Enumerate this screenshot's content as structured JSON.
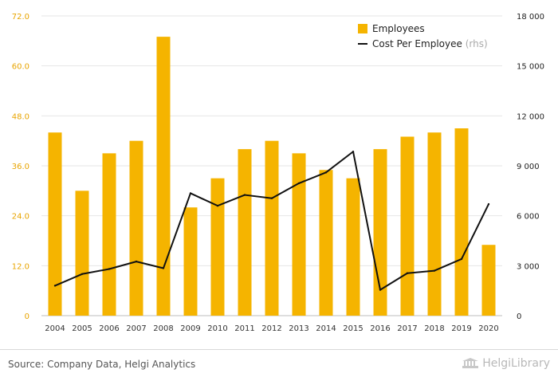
{
  "chart_data": {
    "type": "bar",
    "categories": [
      "2004",
      "2005",
      "2006",
      "2007",
      "2008",
      "2009",
      "2010",
      "2011",
      "2012",
      "2013",
      "2014",
      "2015",
      "2016",
      "2017",
      "2018",
      "2019",
      "2020"
    ],
    "series": [
      {
        "name": "Employees",
        "kind": "bar",
        "axis": "left",
        "color": "#f5b400",
        "values": [
          44,
          30,
          39,
          42,
          67,
          26,
          33,
          40,
          42,
          39,
          35,
          33,
          40,
          43,
          44,
          45,
          17
        ]
      },
      {
        "name": "Cost Per Employee",
        "name_suffix": "(rhs)",
        "kind": "line",
        "axis": "right",
        "color": "#111111",
        "values": [
          1800,
          2500,
          2800,
          3250,
          2850,
          7350,
          6600,
          7250,
          7050,
          7950,
          8600,
          9850,
          1550,
          2550,
          2700,
          3400,
          6700
        ]
      }
    ],
    "left_axis": {
      "ylim": [
        0,
        72
      ],
      "ticks": [
        "0",
        "12.0",
        "24.0",
        "36.0",
        "48.0",
        "60.0",
        "72.0"
      ],
      "tick_color": "#e8a400"
    },
    "right_axis": {
      "ylim": [
        0,
        18000
      ],
      "ticks": [
        "0",
        "3 000",
        "6 000",
        "9 000",
        "12 000",
        "15 000",
        "18 000"
      ]
    },
    "grid": true,
    "legend_position": "top-right"
  },
  "footer": {
    "source": "Source: Company Data, Helgi Analytics",
    "brand": "HelgiLibrary"
  }
}
